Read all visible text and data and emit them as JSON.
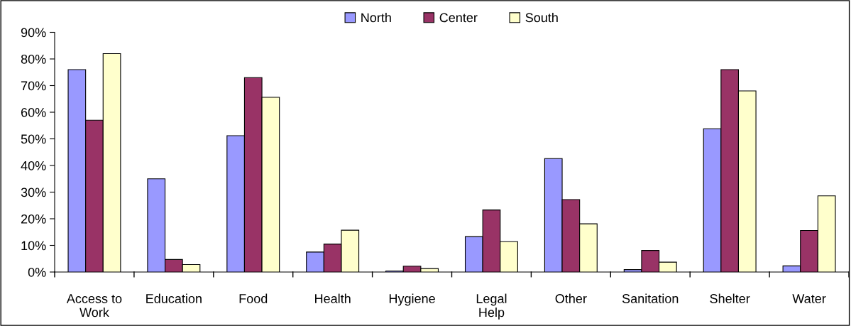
{
  "chart_data": {
    "type": "bar",
    "categories": [
      "Access to\nWork",
      "Education",
      "Food",
      "Health",
      "Hygiene",
      "Legal\nHelp",
      "Other",
      "Sanitation",
      "Shelter",
      "Water"
    ],
    "series": [
      {
        "name": "North",
        "color": "#9999ff",
        "values": [
          76,
          35,
          51.2,
          7.5,
          0.4,
          13.3,
          42.6,
          0.9,
          53.8,
          2.3
        ]
      },
      {
        "name": "Center",
        "color": "#993366",
        "values": [
          57,
          4.7,
          73,
          10.5,
          2.2,
          23.3,
          27.2,
          8.1,
          76,
          15.6
        ]
      },
      {
        "name": "South",
        "color": "#ffffcc",
        "values": [
          82,
          2.8,
          65.6,
          15.7,
          1.3,
          11.4,
          18.1,
          3.7,
          68,
          28.6
        ]
      }
    ],
    "ylim": [
      0,
      90
    ],
    "yticks": [
      {
        "value": 0,
        "label": "0%"
      },
      {
        "value": 10,
        "label": "10%"
      },
      {
        "value": 20,
        "label": "20%"
      },
      {
        "value": 30,
        "label": "30%"
      },
      {
        "value": 40,
        "label": "40%"
      },
      {
        "value": 50,
        "label": "50%"
      },
      {
        "value": 60,
        "label": "60%"
      },
      {
        "value": 70,
        "label": "70%"
      },
      {
        "value": 80,
        "label": "80%"
      },
      {
        "value": 90,
        "label": "90%"
      }
    ],
    "grid": false,
    "legend": "top"
  }
}
